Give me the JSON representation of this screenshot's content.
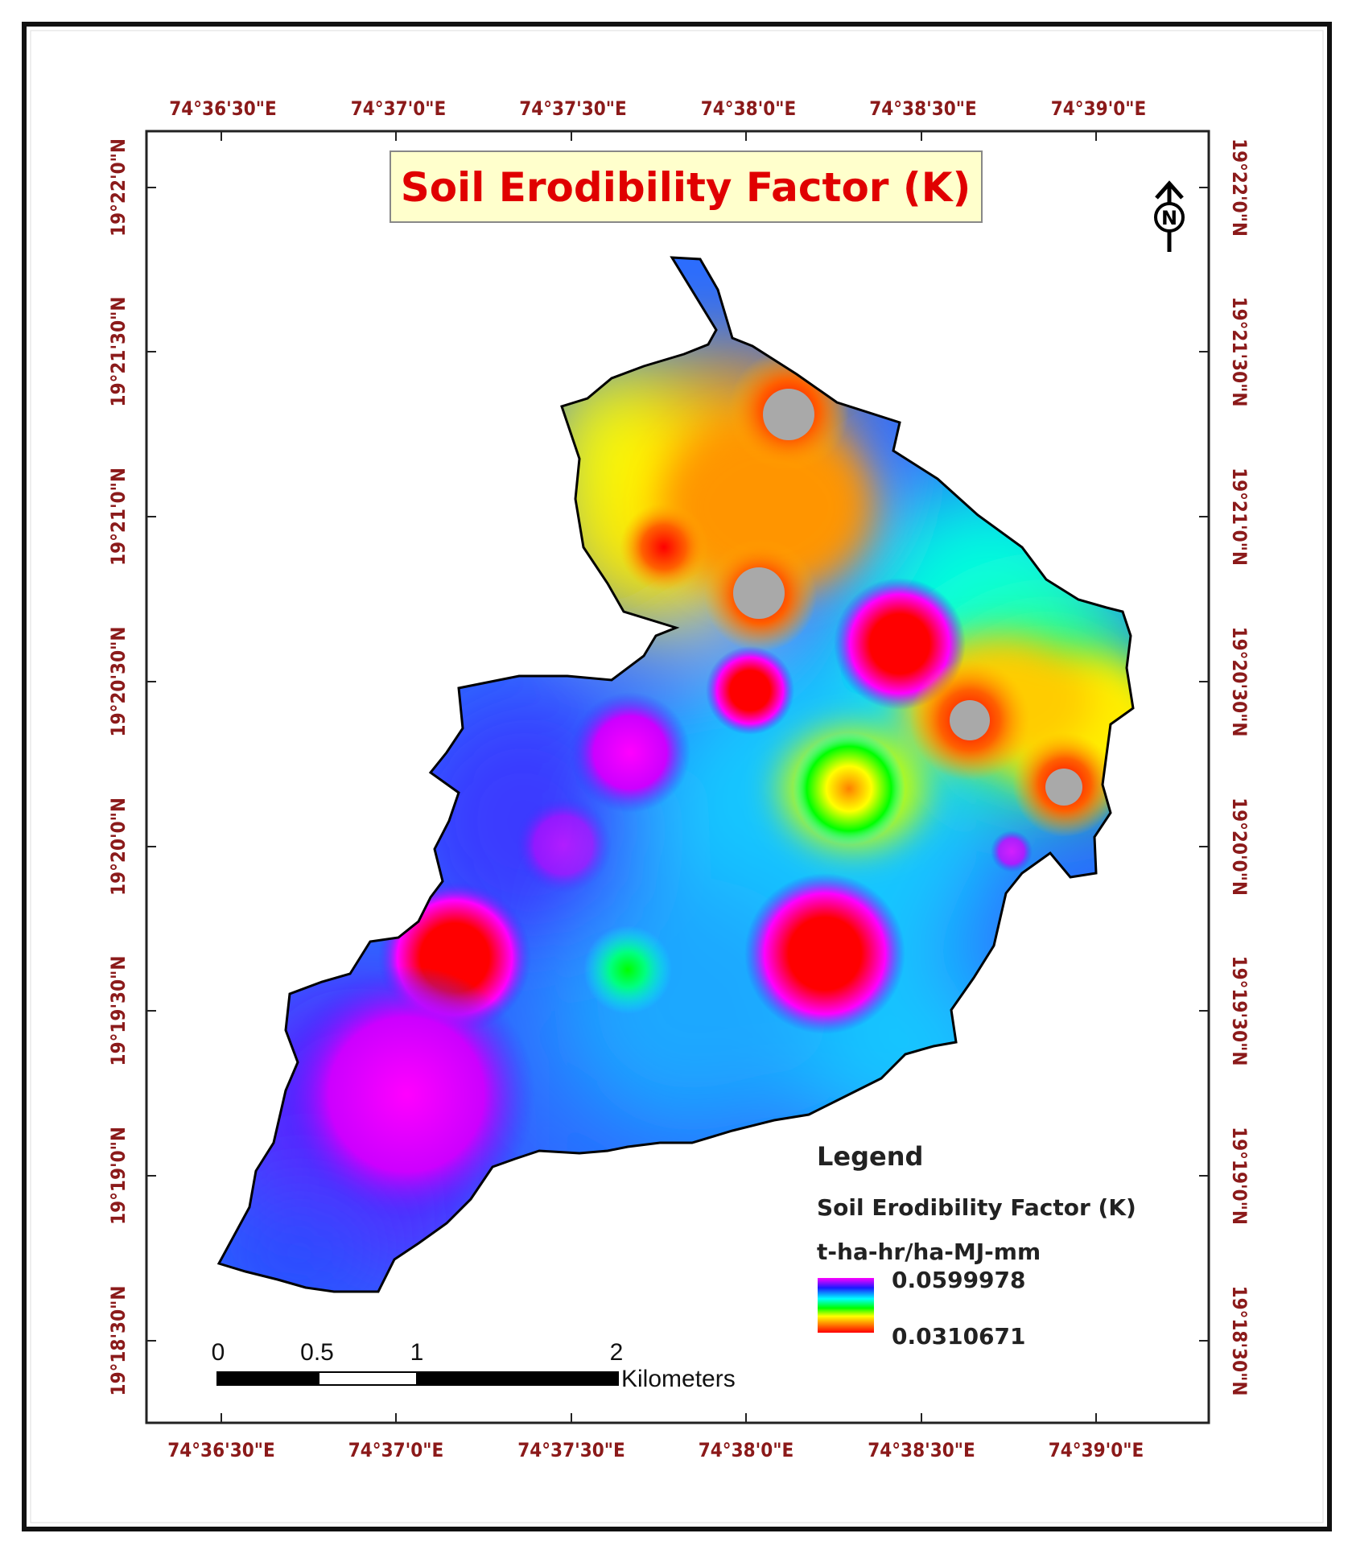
{
  "title": "Soil Erodibility Factor (K)",
  "longitude_labels": [
    "74°36'30\"E",
    "74°37'0\"E",
    "74°37'30\"E",
    "74°38'0\"E",
    "74°38'30\"E",
    "74°39'0\"E"
  ],
  "latitude_labels": [
    "19°22'0\"N",
    "19°21'30\"N",
    "19°21'0\"N",
    "19°20'30\"N",
    "19°20'0\"N",
    "19°19'30\"N",
    "19°19'0\"N",
    "19°18'30\"N"
  ],
  "north_arrow": {
    "icon": "north-arrow-icon",
    "letter": "N"
  },
  "legend": {
    "heading": "Legend",
    "layer_name": "Soil Erodibility Factor (K)",
    "unit": "t-ha-hr/ha-MJ-mm",
    "max_label": "0.0599978",
    "min_label": "0.0310671",
    "ramp_colors": [
      "#ff00ff",
      "#1a1aff",
      "#00ffff",
      "#00ff00",
      "#ffff00",
      "#ff8000",
      "#ff0000"
    ]
  },
  "scale_bar": {
    "ticks": [
      "0",
      "0.5",
      "1",
      "2"
    ],
    "unit": "Kilometers"
  },
  "colors": {
    "frame": "#111111",
    "coordinate_text": "#8b1a1a",
    "title_text": "#e00000",
    "title_box": "#ffffcc",
    "no_data": "#a9a9a9"
  }
}
